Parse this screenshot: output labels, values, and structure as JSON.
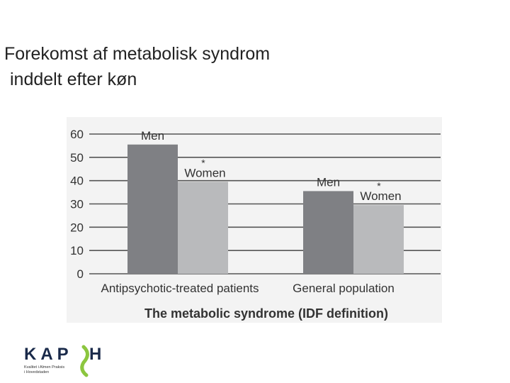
{
  "slide": {
    "title_line1": "Forekomst af metabolisk syndrom",
    "title_line2": "inddelt efter køn"
  },
  "chart_data": {
    "type": "bar",
    "categories": [
      "Antipsychotic-treated patients",
      "General population"
    ],
    "series": [
      {
        "name": "Men",
        "values": [
          55.5,
          35.5
        ],
        "color": "#7f8084"
      },
      {
        "name": "Women",
        "values": [
          39.5,
          29.5
        ],
        "color": "#b9babc"
      }
    ],
    "significance_marker": "*",
    "significance_on": "Women",
    "ylim": [
      0,
      60
    ],
    "yticks": [
      0,
      10,
      20,
      30,
      40,
      50,
      60
    ],
    "xlabel": "The metabolic syndrome (IDF definition)",
    "ylabel": "",
    "grid": true,
    "colors": {
      "grid": "#555555",
      "background": "#f3f3f3",
      "text": "#333333"
    }
  },
  "logo": {
    "wordmark": "KAPH",
    "subtitle_line1": "Kvalitet i Almen Praksis",
    "subtitle_line2": "i Hovedstaden",
    "colors": {
      "navy": "#1a2a4a",
      "green": "#8cc63f"
    }
  }
}
